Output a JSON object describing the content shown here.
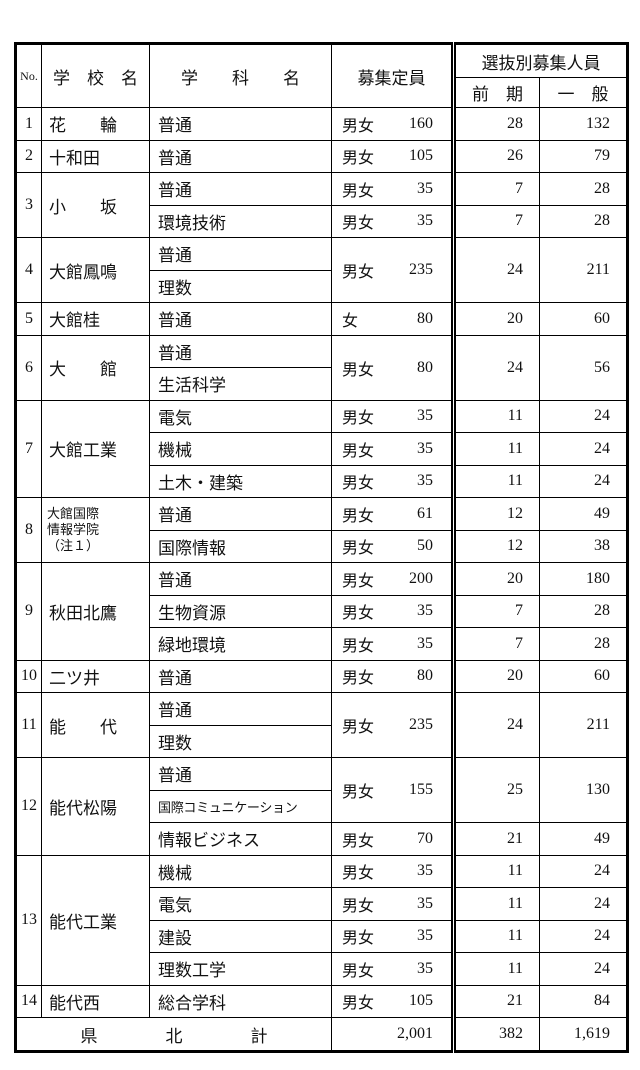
{
  "table": {
    "headers": {
      "no": "No.",
      "school": "学　校　名",
      "department": "学　　科　　名",
      "capacity": "募集定員",
      "selection_group": "選抜別募集人員",
      "early": "前　期",
      "general": "一　般"
    },
    "rows": [
      {
        "no": "1",
        "school": "花　　輪",
        "groups": [
          {
            "depts": [
              "普通"
            ],
            "gender": "男女",
            "capacity": "160",
            "early": "28",
            "general": "132"
          }
        ]
      },
      {
        "no": "2",
        "school": "十和田",
        "groups": [
          {
            "depts": [
              "普通"
            ],
            "gender": "男女",
            "capacity": "105",
            "early": "26",
            "general": "79"
          }
        ]
      },
      {
        "no": "3",
        "school": "小　　坂",
        "groups": [
          {
            "depts": [
              "普通"
            ],
            "gender": "男女",
            "capacity": "35",
            "early": "7",
            "general": "28"
          },
          {
            "depts": [
              "環境技術"
            ],
            "gender": "男女",
            "capacity": "35",
            "early": "7",
            "general": "28"
          }
        ]
      },
      {
        "no": "4",
        "school": "大館鳳鳴",
        "groups": [
          {
            "depts": [
              "普通",
              "理数"
            ],
            "gender": "男女",
            "capacity": "235",
            "early": "24",
            "general": "211"
          }
        ]
      },
      {
        "no": "5",
        "school": "大館桂",
        "groups": [
          {
            "depts": [
              "普通"
            ],
            "gender": "女",
            "capacity": "80",
            "early": "20",
            "general": "60"
          }
        ]
      },
      {
        "no": "6",
        "school": "大　　館",
        "groups": [
          {
            "depts": [
              "普通",
              "生活科学"
            ],
            "gender": "男女",
            "capacity": "80",
            "early": "24",
            "general": "56"
          }
        ]
      },
      {
        "no": "7",
        "school": "大館工業",
        "groups": [
          {
            "depts": [
              "電気"
            ],
            "gender": "男女",
            "capacity": "35",
            "early": "11",
            "general": "24"
          },
          {
            "depts": [
              "機械"
            ],
            "gender": "男女",
            "capacity": "35",
            "early": "11",
            "general": "24"
          },
          {
            "depts": [
              "土木・建築"
            ],
            "gender": "男女",
            "capacity": "35",
            "early": "11",
            "general": "24"
          }
        ]
      },
      {
        "no": "8",
        "school": "大館国際\n情報学院\n（注１）",
        "groups": [
          {
            "depts": [
              "普通"
            ],
            "gender": "男女",
            "capacity": "61",
            "early": "12",
            "general": "49"
          },
          {
            "depts": [
              "国際情報"
            ],
            "gender": "男女",
            "capacity": "50",
            "early": "12",
            "general": "38"
          }
        ]
      },
      {
        "no": "9",
        "school": "秋田北鷹",
        "groups": [
          {
            "depts": [
              "普通"
            ],
            "gender": "男女",
            "capacity": "200",
            "early": "20",
            "general": "180"
          },
          {
            "depts": [
              "生物資源"
            ],
            "gender": "男女",
            "capacity": "35",
            "early": "7",
            "general": "28"
          },
          {
            "depts": [
              "緑地環境"
            ],
            "gender": "男女",
            "capacity": "35",
            "early": "7",
            "general": "28"
          }
        ]
      },
      {
        "no": "10",
        "school": "二ツ井",
        "groups": [
          {
            "depts": [
              "普通"
            ],
            "gender": "男女",
            "capacity": "80",
            "early": "20",
            "general": "60"
          }
        ]
      },
      {
        "no": "11",
        "school": "能　　代",
        "groups": [
          {
            "depts": [
              "普通",
              "理数"
            ],
            "gender": "男女",
            "capacity": "235",
            "early": "24",
            "general": "211"
          }
        ]
      },
      {
        "no": "12",
        "school": "能代松陽",
        "groups": [
          {
            "depts": [
              "普通",
              "国際コミュニケーション"
            ],
            "gender": "男女",
            "capacity": "155",
            "early": "25",
            "general": "130"
          },
          {
            "depts": [
              "情報ビジネス"
            ],
            "gender": "男女",
            "capacity": "70",
            "early": "21",
            "general": "49"
          }
        ]
      },
      {
        "no": "13",
        "school": "能代工業",
        "groups": [
          {
            "depts": [
              "機械"
            ],
            "gender": "男女",
            "capacity": "35",
            "early": "11",
            "general": "24"
          },
          {
            "depts": [
              "電気"
            ],
            "gender": "男女",
            "capacity": "35",
            "early": "11",
            "general": "24"
          },
          {
            "depts": [
              "建設"
            ],
            "gender": "男女",
            "capacity": "35",
            "early": "11",
            "general": "24"
          },
          {
            "depts": [
              "理数工学"
            ],
            "gender": "男女",
            "capacity": "35",
            "early": "11",
            "general": "24"
          }
        ]
      },
      {
        "no": "14",
        "school": "能代西",
        "groups": [
          {
            "depts": [
              "総合学科"
            ],
            "gender": "男女",
            "capacity": "105",
            "early": "21",
            "general": "84"
          }
        ]
      }
    ],
    "footer": {
      "label": "県　　　　北　　　　計",
      "capacity": "2,001",
      "early": "382",
      "general": "1,619"
    }
  }
}
